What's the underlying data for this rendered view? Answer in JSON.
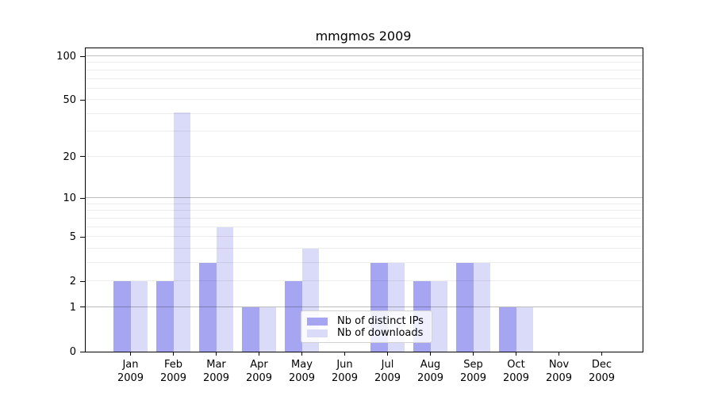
{
  "chart_data": {
    "type": "bar",
    "title": "mmgmos 2009",
    "categories": [
      "Jan",
      "Feb",
      "Mar",
      "Apr",
      "May",
      "Jun",
      "Jul",
      "Aug",
      "Sep",
      "Oct",
      "Nov",
      "Dec"
    ],
    "year_label": "2009",
    "series": [
      {
        "name": "Nb of distinct IPs",
        "color": "#a5a5f1",
        "values": [
          2,
          2,
          3,
          1,
          2,
          0,
          3,
          2,
          3,
          1,
          0,
          0
        ]
      },
      {
        "name": "Nb of downloads",
        "color": "#dadaf9",
        "values": [
          2,
          41,
          6,
          1,
          4,
          0,
          3,
          2,
          3,
          1,
          0,
          0
        ]
      }
    ],
    "scale": "log1p",
    "ylim": [
      0,
      113
    ],
    "yticks": [
      0,
      1,
      2,
      5,
      10,
      20,
      50,
      100
    ],
    "grid_major": [
      1,
      10,
      100
    ],
    "grid_minor": [
      2,
      3,
      4,
      5,
      6,
      7,
      8,
      9,
      20,
      30,
      40,
      50,
      60,
      70,
      80,
      90
    ],
    "grid": true,
    "legend_position": "lower center"
  },
  "colors": {
    "axis": "#000000",
    "grid_minor": "#ededed",
    "grid_major": "#bcbcbc",
    "legend_border": "#d2d2d2",
    "background": "#ffffff"
  }
}
